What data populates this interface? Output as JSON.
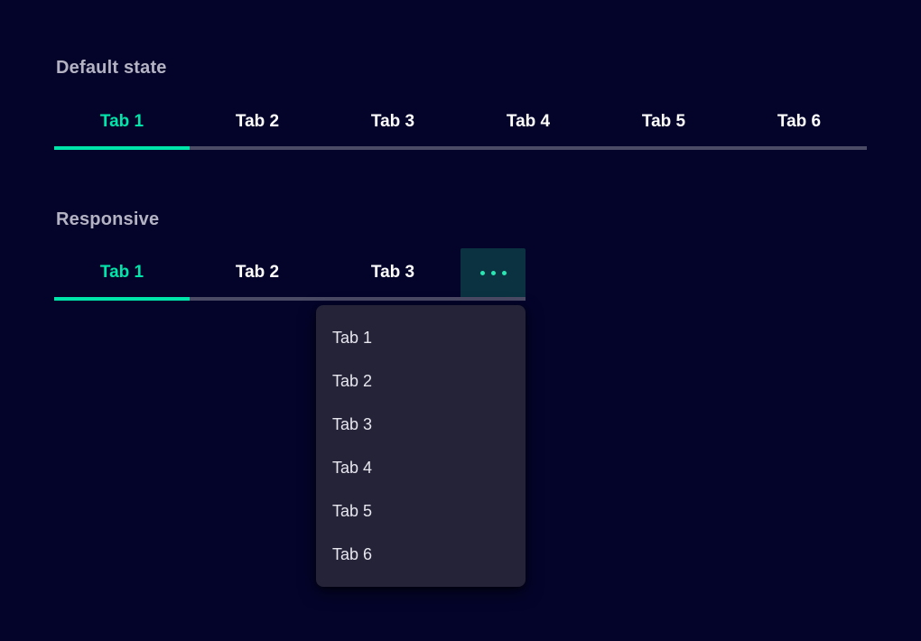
{
  "colors": {
    "background": "#04042b",
    "accent_teal": "#00e5a9",
    "ellipsis_dot_teal": "#29e6b3",
    "muted_underline": "#4c4b66",
    "heading_text": "#b4b3c4",
    "tab_text": "#ffffff",
    "overflow_button_bg": "#0a3240",
    "menu_bg": "#242338",
    "menu_text": "#e8e7ef"
  },
  "default_section": {
    "title": "Default state",
    "active_tab": "Tab 1",
    "tabs": [
      "Tab 1",
      "Tab 2",
      "Tab 3",
      "Tab 4",
      "Tab 5",
      "Tab 6"
    ]
  },
  "responsive_section": {
    "title": "Responsive",
    "active_tab": "Tab 1",
    "visible_tabs": [
      "Tab 1",
      "Tab 2",
      "Tab 3"
    ],
    "overflow_icon": "ellipsis",
    "menu_items": [
      "Tab 1",
      "Tab 2",
      "Tab 3",
      "Tab 4",
      "Tab 5",
      "Tab 6"
    ]
  }
}
